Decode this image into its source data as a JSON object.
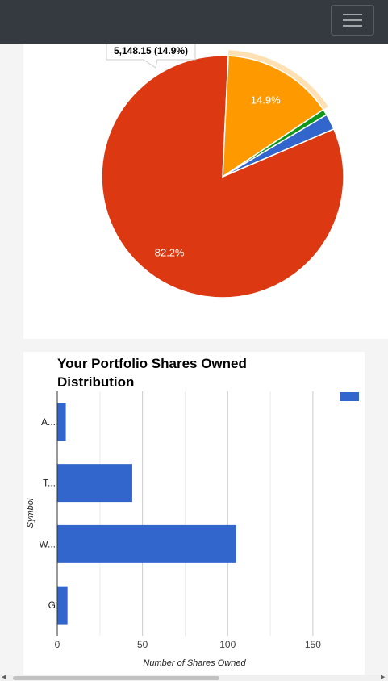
{
  "navbar": {
    "toggler_icon": "hamburger-icon"
  },
  "pie_chart": {
    "chart_data": {
      "type": "pie",
      "slices": [
        {
          "label": "82.2%",
          "percent": 82.2,
          "color": "#dc3912"
        },
        {
          "label": "14.9%",
          "percent": 14.9,
          "color": "#ff9900",
          "highlighted": true
        },
        {
          "label": "",
          "percent": 0.8,
          "color": "#109618"
        },
        {
          "label": "",
          "percent": 2.1,
          "color": "#3366cc"
        }
      ],
      "tooltip": "5,148.15 (14.9%)"
    }
  },
  "bar_chart": {
    "chart_data": {
      "type": "bar",
      "orientation": "horizontal",
      "title": "Your Portfolio Shares Owned Distribution",
      "title_lines": [
        "Your Portfolio Shares Owned",
        "Distribution"
      ],
      "categories": [
        "A...",
        "T...",
        "W...",
        "G"
      ],
      "values": [
        5,
        44,
        105,
        6
      ],
      "xlabel": "Number of Shares Owned",
      "ylabel": "Symbol",
      "xlim": [
        0,
        160
      ],
      "x_ticks": [
        0,
        50,
        100,
        150
      ],
      "grid": true,
      "legend": "top-right",
      "bar_color": "#3366cc"
    }
  }
}
